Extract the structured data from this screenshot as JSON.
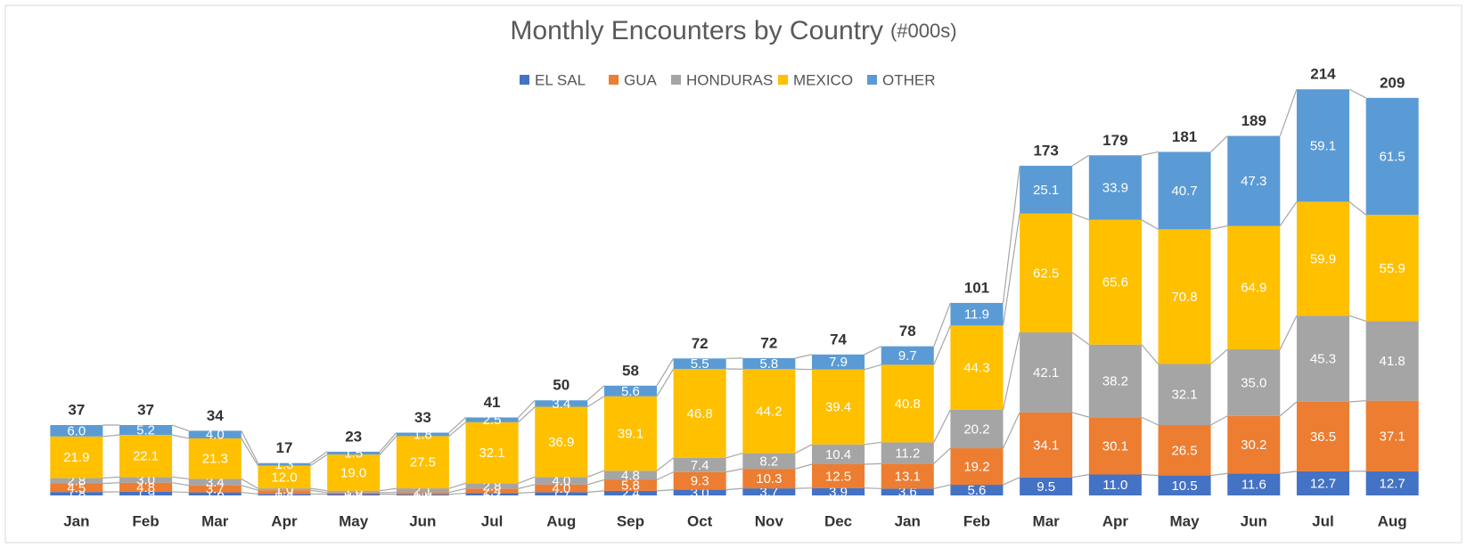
{
  "chart_data": {
    "type": "stacked_bar",
    "title": "Monthly Encounters by Country",
    "title_unit": "(#000s)",
    "categories": [
      "Jan",
      "Feb",
      "Mar",
      "Apr",
      "May",
      "Jun",
      "Jul",
      "Aug",
      "Sep",
      "Oct",
      "Nov",
      "Dec",
      "Jan",
      "Feb",
      "Mar",
      "Apr",
      "May",
      "Jun",
      "Jul",
      "Aug"
    ],
    "ylim": [
      0,
      230
    ],
    "legend": "top",
    "series": [
      {
        "name": "EL SAL",
        "color": "#4472c4",
        "values": [
          1.8,
          1.9,
          1.6,
          0.8,
          0.7,
          0.6,
          1.2,
          1.7,
          2.4,
          3.0,
          3.7,
          3.9,
          3.6,
          5.6,
          9.5,
          11.0,
          10.5,
          11.6,
          12.7,
          12.7
        ],
        "value_labels": [
          "1.8",
          "1.9",
          "1.6",
          "0.8",
          "0.7",
          "0.6",
          "1.2",
          "1.7",
          "2.4",
          "3.0",
          "3.7",
          "3.9",
          "3.6",
          "5.6",
          "9.5",
          "11.0",
          "10.5",
          "11.6",
          "12.7",
          "12.7"
        ]
      },
      {
        "name": "GUA",
        "color": "#ed7d31",
        "values": [
          4.5,
          4.8,
          3.7,
          1.9,
          0.8,
          1.0,
          2.4,
          4.0,
          5.8,
          9.3,
          10.3,
          12.5,
          13.1,
          19.2,
          34.1,
          30.1,
          26.5,
          30.2,
          36.5,
          37.1
        ],
        "value_labels": [
          "4.5",
          "4.8",
          "3.7",
          "1.9",
          "0.8",
          "1.0",
          "2.4",
          "4.0",
          "5.8",
          "9.3",
          "10.3",
          "12.5",
          "13.1",
          "19.2",
          "34.1",
          "30.1",
          "26.5",
          "30.2",
          "36.5",
          "37.1"
        ]
      },
      {
        "name": "HONDURAS",
        "color": "#a5a5a5",
        "values": [
          2.8,
          3.0,
          3.4,
          1.0,
          1.0,
          2.1,
          2.8,
          4.0,
          4.8,
          7.4,
          8.2,
          10.4,
          11.2,
          20.2,
          42.1,
          38.2,
          32.1,
          35.0,
          45.3,
          41.8
        ],
        "value_labels": [
          "2.8",
          "3.0",
          "3.4",
          "1.0",
          "1.0",
          "2.1",
          "2.8",
          "4.0",
          "4.8",
          "7.4",
          "8.2",
          "10.4",
          "11.2",
          "20.2",
          "42.1",
          "38.2",
          "32.1",
          "35.0",
          "45.3",
          "41.8"
        ]
      },
      {
        "name": "MEXICO",
        "color": "#ffc000",
        "values": [
          21.9,
          22.1,
          21.3,
          12.0,
          19.0,
          27.5,
          32.1,
          36.9,
          39.1,
          46.8,
          44.2,
          39.4,
          40.8,
          44.3,
          62.5,
          65.6,
          70.8,
          64.9,
          59.9,
          55.9
        ],
        "value_labels": [
          "21.9",
          "22.1",
          "21.3",
          "12.0",
          "19.0",
          "27.5",
          "32.1",
          "36.9",
          "39.1",
          "46.8",
          "44.2",
          "39.4",
          "40.8",
          "44.3",
          "62.5",
          "65.6",
          "70.8",
          "64.9",
          "59.9",
          "55.9"
        ]
      },
      {
        "name": "OTHER",
        "color": "#5b9bd5",
        "values": [
          6.0,
          5.2,
          4.0,
          1.3,
          1.5,
          1.8,
          2.5,
          3.4,
          5.6,
          5.5,
          5.8,
          7.9,
          9.7,
          11.9,
          25.1,
          33.9,
          40.7,
          47.3,
          59.1,
          61.5
        ],
        "value_labels": [
          "6.0",
          "5.2",
          "4.0",
          "1.3",
          "1.5",
          "1.8",
          "2.5",
          "3.4",
          "5.6",
          "5.5",
          "5.8",
          "7.9",
          "9.7",
          "11.9",
          "25.1",
          "33.9",
          "40.7",
          "47.3",
          "59.1",
          "61.5"
        ]
      }
    ],
    "totals": [
      37,
      37,
      34,
      17,
      23,
      33,
      41,
      50,
      58,
      72,
      72,
      74,
      78,
      101,
      173,
      179,
      181,
      189,
      214,
      209
    ]
  }
}
